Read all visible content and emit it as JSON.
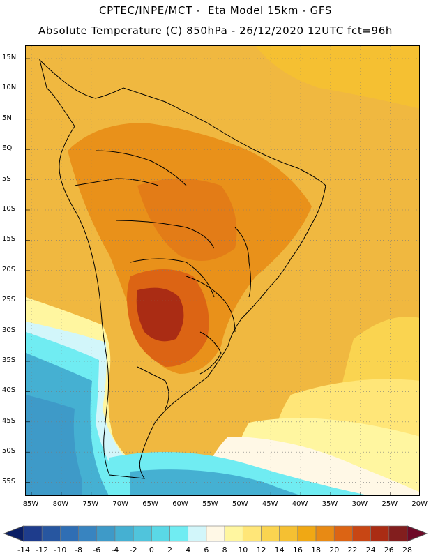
{
  "title": {
    "line1": "CPTEC/INPE/MCT -  Eta Model 15km - GFS",
    "line2": "Absolute Temperature (C) 850hPa - 26/12/2020 12UTC fct=96h"
  },
  "lat_labels": [
    "15N",
    "10N",
    "5N",
    "EQ",
    "5S",
    "10S",
    "15S",
    "20S",
    "25S",
    "30S",
    "35S",
    "40S",
    "45S",
    "50S",
    "55S"
  ],
  "lon_labels": [
    "85W",
    "80W",
    "75W",
    "70W",
    "65W",
    "60W",
    "55W",
    "50W",
    "45W",
    "40W",
    "35W",
    "30W",
    "25W",
    "20W"
  ],
  "colorbar": {
    "labels": [
      "-14",
      "-12",
      "-10",
      "-8",
      "-6",
      "-4",
      "-2",
      "0",
      "2",
      "4",
      "6",
      "8",
      "10",
      "12",
      "14",
      "16",
      "18",
      "20",
      "22",
      "24",
      "26",
      "28"
    ],
    "colors": [
      "#1e3c8c",
      "#2756a0",
      "#2f6eb4",
      "#3884c0",
      "#3e9ac8",
      "#45b0d2",
      "#50c4dc",
      "#5ad8e6",
      "#70ecf2",
      "#d2f6fa",
      "#fff8e6",
      "#fff6a0",
      "#ffe678",
      "#fad450",
      "#f5c032",
      "#f0a814",
      "#e88a14",
      "#dc6414",
      "#c84614",
      "#aa2c14",
      "#821e1e"
    ],
    "low_arrow_color": "#0a1e64",
    "high_arrow_color": "#6e0a28"
  },
  "palette": {
    "ocean_base": "#f0b840",
    "warm_orange": "#e88a14",
    "hot_red": "#dc6414",
    "hottest": "#aa2c14",
    "yellow": "#ffe678",
    "pale_yellow": "#fff6a0",
    "cream": "#fff8e6",
    "pale_cyan": "#d2f6fa",
    "cyan": "#70ecf2",
    "blue": "#45b0d2",
    "deep_blue": "#3884c0"
  }
}
